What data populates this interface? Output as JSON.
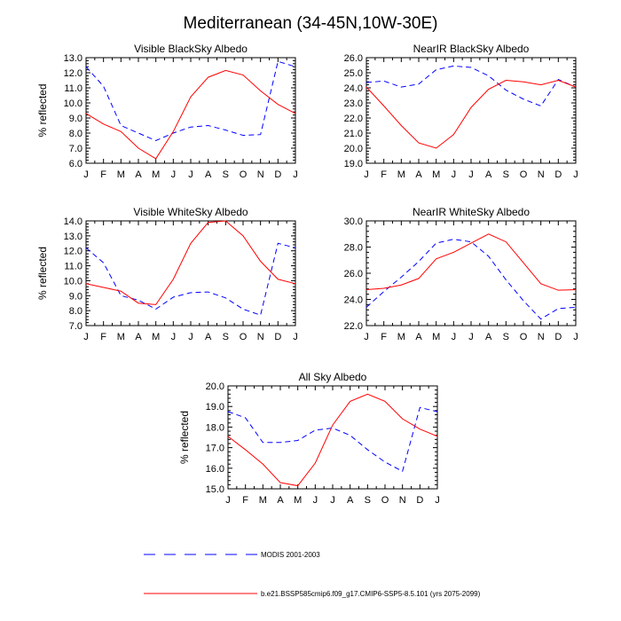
{
  "figure": {
    "title": "Mediterranean (34-45N,10W-30E)"
  },
  "legend": {
    "placement": "bottom",
    "entries": [
      {
        "label": "MODIS 2001-2003",
        "color": "#0000ff",
        "dash": "dashed"
      },
      {
        "label": "b.e21.BSSP585cmip6.f09_g17.CMIP6-SSP5-8.5.101 (yrs 2075-2099)",
        "color": "#ff0000",
        "dash": "solid"
      }
    ]
  },
  "chart_data": [
    {
      "type": "line",
      "title": "Visible BlackSky Albedo",
      "ylabel": "% reflected",
      "xlabel": "",
      "x": [
        "J",
        "F",
        "M",
        "A",
        "M",
        "J",
        "J",
        "A",
        "S",
        "O",
        "N",
        "D",
        "J"
      ],
      "ylim": [
        6.0,
        13.0
      ],
      "yticks": [
        6.0,
        7.0,
        8.0,
        9.0,
        10.0,
        11.0,
        12.0,
        13.0
      ],
      "grid": false,
      "series": [
        {
          "name": "MODIS 2001-2003",
          "values": [
            12.4,
            11.1,
            8.5,
            8.0,
            7.5,
            8.0,
            8.4,
            8.5,
            8.2,
            7.85,
            7.9,
            12.75,
            12.4
          ]
        },
        {
          "name": "b.e21.BSSP585cmip6.f09_g17.CMIP6-SSP5-8.5.101 (yrs 2075-2099)",
          "values": [
            9.3,
            8.6,
            8.1,
            7.0,
            6.3,
            8.1,
            10.4,
            11.7,
            12.15,
            11.85,
            10.8,
            9.9,
            9.3
          ]
        }
      ]
    },
    {
      "type": "line",
      "title": "NearIR BlackSky Albedo",
      "ylabel": "",
      "xlabel": "",
      "x": [
        "J",
        "F",
        "M",
        "A",
        "M",
        "J",
        "J",
        "A",
        "S",
        "O",
        "N",
        "D",
        "J"
      ],
      "ylim": [
        19.0,
        26.0
      ],
      "yticks": [
        19.0,
        20.0,
        21.0,
        22.0,
        23.0,
        24.0,
        25.0,
        26.0
      ],
      "grid": false,
      "series": [
        {
          "name": "MODIS 2001-2003",
          "values": [
            24.35,
            24.45,
            24.05,
            24.25,
            25.2,
            25.45,
            25.35,
            24.8,
            23.85,
            23.25,
            22.8,
            24.55,
            24.05
          ]
        },
        {
          "name": "b.e21.BSSP585cmip6.f09_g17.CMIP6-SSP5-8.5.101 (yrs 2075-2099)",
          "values": [
            24.05,
            22.8,
            21.5,
            20.35,
            20.0,
            20.9,
            22.7,
            23.9,
            24.5,
            24.4,
            24.2,
            24.5,
            24.05
          ]
        }
      ]
    },
    {
      "type": "line",
      "title": "Visible WhiteSky Albedo",
      "ylabel": "% reflected",
      "xlabel": "",
      "x": [
        "J",
        "F",
        "M",
        "A",
        "M",
        "J",
        "J",
        "A",
        "S",
        "O",
        "N",
        "D",
        "J"
      ],
      "ylim": [
        7.0,
        14.0
      ],
      "yticks": [
        7.0,
        8.0,
        9.0,
        10.0,
        11.0,
        12.0,
        13.0,
        14.0
      ],
      "grid": false,
      "series": [
        {
          "name": "MODIS 2001-2003",
          "values": [
            12.2,
            11.2,
            9.0,
            8.7,
            8.1,
            8.9,
            9.2,
            9.25,
            8.85,
            8.1,
            7.7,
            12.5,
            12.2
          ]
        },
        {
          "name": "b.e21.BSSP585cmip6.f09_g17.CMIP6-SSP5-8.5.101 (yrs 2075-2099)",
          "values": [
            9.8,
            9.55,
            9.3,
            8.5,
            8.4,
            10.1,
            12.5,
            13.9,
            14.0,
            13.0,
            11.3,
            10.1,
            9.8
          ]
        }
      ]
    },
    {
      "type": "line",
      "title": "NearIR WhiteSky Albedo",
      "ylabel": "",
      "xlabel": "",
      "x": [
        "J",
        "F",
        "M",
        "A",
        "M",
        "J",
        "J",
        "A",
        "S",
        "O",
        "N",
        "D",
        "J"
      ],
      "ylim": [
        22.0,
        30.0
      ],
      "yticks": [
        22.0,
        24.0,
        26.0,
        28.0,
        30.0
      ],
      "grid": false,
      "series": [
        {
          "name": "MODIS 2001-2003",
          "values": [
            23.4,
            24.6,
            25.7,
            26.9,
            28.3,
            28.6,
            28.4,
            27.3,
            25.5,
            23.9,
            22.5,
            23.3,
            23.4
          ]
        },
        {
          "name": "b.e21.BSSP585cmip6.f09_g17.CMIP6-SSP5-8.5.101 (yrs 2075-2099)",
          "values": [
            24.75,
            24.85,
            25.1,
            25.6,
            27.1,
            27.6,
            28.3,
            29.0,
            28.4,
            26.8,
            25.2,
            24.7,
            24.75
          ]
        }
      ]
    },
    {
      "type": "line",
      "title": "All Sky Albedo",
      "ylabel": "% reflected",
      "xlabel": "",
      "x": [
        "J",
        "F",
        "M",
        "A",
        "M",
        "J",
        "J",
        "A",
        "S",
        "O",
        "N",
        "D",
        "J"
      ],
      "ylim": [
        15.0,
        20.0
      ],
      "yticks": [
        15.0,
        16.0,
        17.0,
        18.0,
        19.0,
        20.0
      ],
      "grid": false,
      "series": [
        {
          "name": "MODIS 2001-2003",
          "values": [
            18.75,
            18.45,
            17.25,
            17.25,
            17.35,
            17.85,
            17.95,
            17.6,
            16.9,
            16.3,
            15.85,
            18.95,
            18.75
          ]
        },
        {
          "name": "b.e21.BSSP585cmip6.f09_g17.CMIP6-SSP5-8.5.101 (yrs 2075-2099)",
          "values": [
            17.55,
            16.9,
            16.2,
            15.3,
            15.15,
            16.25,
            18.1,
            19.25,
            19.6,
            19.25,
            18.4,
            17.9,
            17.55
          ]
        }
      ]
    }
  ]
}
